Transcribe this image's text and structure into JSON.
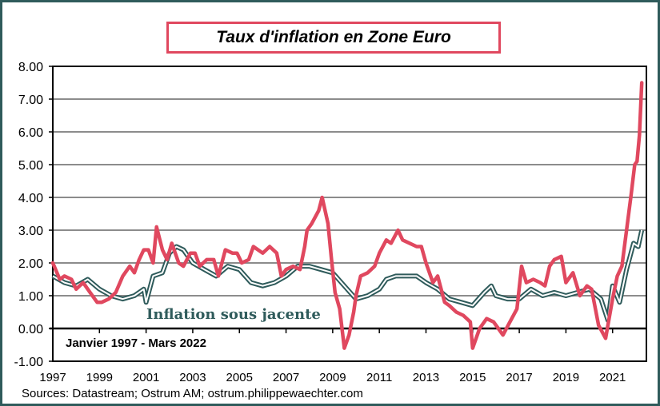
{
  "chart_data": {
    "type": "line",
    "title": "Taux d'inflation en Zone Euro",
    "xlabel": "",
    "ylabel": "",
    "xlim": [
      1997,
      2022.25
    ],
    "ylim": [
      -1,
      8
    ],
    "yticks": [
      "-1.00",
      "0.00",
      "1.00",
      "2.00",
      "3.00",
      "4.00",
      "5.00",
      "6.00",
      "7.00",
      "8.00"
    ],
    "xticks": [
      "1997",
      "1999",
      "2001",
      "2003",
      "2005",
      "2007",
      "2009",
      "2011",
      "2013",
      "2015",
      "2017",
      "2019",
      "2021"
    ],
    "grid": true,
    "annotations": {
      "core_label": "Inflation sous jacente",
      "period": "Janvier 1997 - Mars 2022"
    },
    "source": "Sources: Datastream;  Ostrum  AM; ostrum.philippewaechter.com",
    "series": [
      {
        "name": "Inflation",
        "color": "#e0485f",
        "x": [
          1997.0,
          1997.3,
          1997.5,
          1997.8,
          1998.0,
          1998.3,
          1998.6,
          1998.9,
          1999.1,
          1999.4,
          1999.7,
          2000.0,
          2000.3,
          2000.5,
          2000.7,
          2000.9,
          2001.1,
          2001.3,
          2001.45,
          2001.7,
          2001.9,
          2002.1,
          2002.4,
          2002.6,
          2002.9,
          2003.1,
          2003.3,
          2003.6,
          2003.9,
          2004.1,
          2004.4,
          2004.7,
          2004.9,
          2005.1,
          2005.4,
          2005.6,
          2005.8,
          2006.0,
          2006.3,
          2006.6,
          2006.8,
          2007.0,
          2007.3,
          2007.6,
          2007.8,
          2007.9,
          2008.1,
          2008.4,
          2008.55,
          2008.8,
          2008.95,
          2009.1,
          2009.3,
          2009.5,
          2009.7,
          2009.9,
          2010.0,
          2010.2,
          2010.5,
          2010.8,
          2011.0,
          2011.3,
          2011.5,
          2011.8,
          2012.0,
          2012.3,
          2012.6,
          2012.8,
          2013.0,
          2013.3,
          2013.5,
          2013.8,
          2014.0,
          2014.3,
          2014.6,
          2014.9,
          2015.0,
          2015.3,
          2015.6,
          2015.9,
          2016.1,
          2016.3,
          2016.6,
          2016.9,
          2017.1,
          2017.3,
          2017.6,
          2017.9,
          2018.1,
          2018.3,
          2018.5,
          2018.8,
          2019.0,
          2019.3,
          2019.6,
          2019.9,
          2020.1,
          2020.4,
          2020.7,
          2021.0,
          2021.2,
          2021.4,
          2021.6,
          2021.8,
          2021.95,
          2022.05,
          2022.15,
          2022.25
        ],
        "y": [
          2.0,
          1.5,
          1.6,
          1.5,
          1.2,
          1.4,
          1.1,
          0.8,
          0.8,
          0.9,
          1.1,
          1.6,
          1.9,
          1.7,
          2.1,
          2.4,
          2.4,
          2.0,
          3.1,
          2.4,
          2.1,
          2.6,
          2.0,
          1.9,
          2.3,
          2.3,
          1.9,
          2.1,
          2.1,
          1.6,
          2.4,
          2.3,
          2.3,
          2.0,
          2.1,
          2.5,
          2.4,
          2.3,
          2.5,
          2.3,
          1.6,
          1.8,
          1.9,
          1.8,
          2.5,
          3.0,
          3.2,
          3.6,
          4.0,
          3.2,
          2.1,
          1.1,
          0.6,
          -0.6,
          -0.2,
          0.5,
          1.0,
          1.6,
          1.7,
          1.9,
          2.3,
          2.7,
          2.6,
          3.0,
          2.7,
          2.6,
          2.5,
          2.5,
          2.0,
          1.4,
          1.6,
          0.8,
          0.7,
          0.5,
          0.4,
          0.2,
          -0.6,
          0.0,
          0.3,
          0.2,
          0.0,
          -0.2,
          0.2,
          0.6,
          1.9,
          1.4,
          1.5,
          1.4,
          1.3,
          1.9,
          2.1,
          2.2,
          1.4,
          1.7,
          1.0,
          1.3,
          1.2,
          0.1,
          -0.3,
          0.9,
          1.6,
          1.9,
          3.0,
          4.1,
          5.0,
          5.1,
          5.9,
          7.5
        ]
      },
      {
        "name": "Inflation sous jacente",
        "color": "#2f5b5b",
        "x": [
          1997,
          1997.5,
          1998,
          1998.5,
          1999,
          1999.5,
          2000,
          2000.5,
          2000.9,
          2001.0,
          2001.3,
          2001.7,
          2002.0,
          2002.3,
          2002.6,
          2003,
          2003.5,
          2004,
          2004.5,
          2005,
          2005.5,
          2006,
          2006.5,
          2007,
          2007.5,
          2008,
          2008.5,
          2009,
          2009.5,
          2010,
          2010.5,
          2011,
          2011.3,
          2011.7,
          2012,
          2012.6,
          2013,
          2013.5,
          2014,
          2014.5,
          2015,
          2015.5,
          2015.8,
          2016,
          2016.5,
          2017,
          2017.5,
          2018,
          2018.5,
          2019,
          2019.5,
          2020,
          2020.5,
          2020.8,
          2021.0,
          2021.3,
          2021.6,
          2021.9,
          2022.1,
          2022.25
        ],
        "y": [
          1.6,
          1.4,
          1.3,
          1.5,
          1.2,
          1.0,
          0.9,
          1.0,
          1.2,
          0.8,
          1.6,
          1.7,
          2.3,
          2.5,
          2.4,
          2.0,
          1.8,
          1.6,
          1.9,
          1.8,
          1.4,
          1.3,
          1.4,
          1.6,
          1.9,
          1.9,
          1.8,
          1.7,
          1.3,
          0.9,
          1.0,
          1.2,
          1.5,
          1.6,
          1.6,
          1.6,
          1.4,
          1.2,
          0.9,
          0.8,
          0.7,
          1.1,
          1.3,
          1.0,
          0.9,
          0.9,
          1.2,
          1.0,
          1.1,
          1.0,
          1.1,
          1.2,
          0.9,
          0.25,
          1.3,
          0.8,
          1.8,
          2.6,
          2.5,
          3.0
        ]
      }
    ]
  }
}
